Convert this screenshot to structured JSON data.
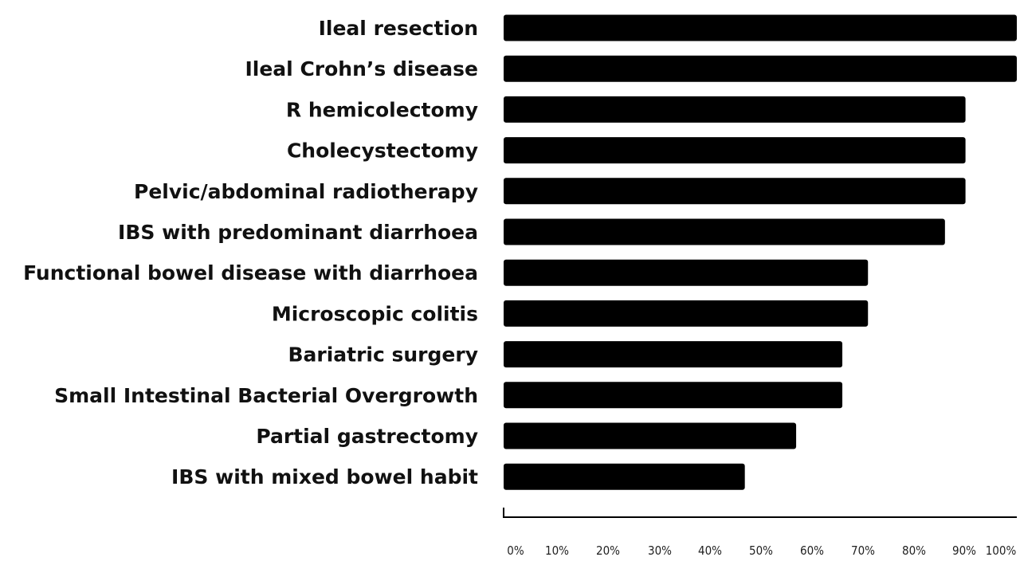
{
  "chart_data": {
    "type": "bar",
    "orientation": "horizontal",
    "title": "",
    "xlabel": "",
    "ylabel": "",
    "xlim": [
      0,
      100
    ],
    "grid": false,
    "legend": "none",
    "bar_color": "#000000",
    "categories": [
      "Ileal resection",
      "Ileal Crohn’s disease",
      "R hemicolectomy",
      "Cholecystectomy",
      "Pelvic/abdominal radiotherapy",
      "IBS with predominant diarrhoea",
      "Functional bowel disease with diarrhoea",
      "Microscopic colitis",
      "Bariatric surgery",
      "Small Intestinal Bacterial Overgrowth",
      "Partial gastrectomy",
      "IBS with mixed bowel habit"
    ],
    "values": [
      100,
      100,
      90,
      90,
      90,
      86,
      71,
      71,
      66,
      66,
      57,
      47
    ],
    "tick_labels": [
      "0%",
      "10%",
      "20%",
      "30%",
      "40%",
      "50%",
      "60%",
      "70%",
      "80%",
      "90%",
      "100%"
    ]
  }
}
